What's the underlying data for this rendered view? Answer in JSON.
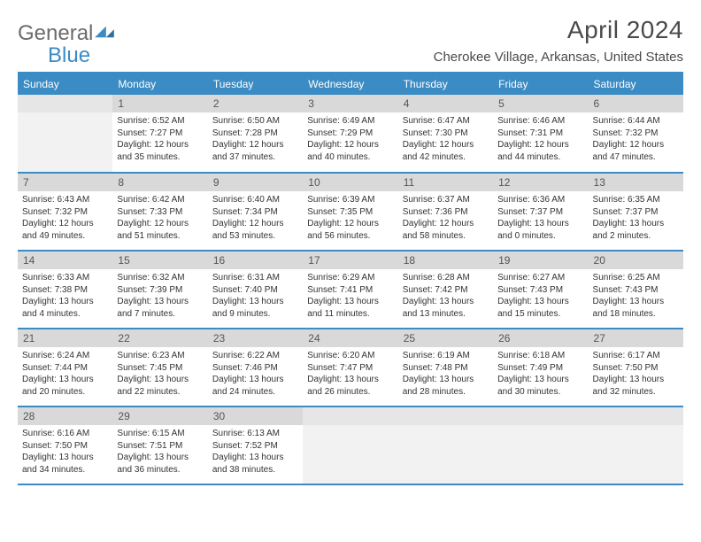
{
  "brand": {
    "part1": "General",
    "part2": "Blue"
  },
  "title": "April 2024",
  "location": "Cherokee Village, Arkansas, United States",
  "colors": {
    "accent": "#3b8bc4",
    "header_bg": "#3b8bc4",
    "header_text": "#ffffff",
    "daynum_bg": "#d9d9d9",
    "body_text": "#333333",
    "border": "#3b8bc4"
  },
  "weekdays": [
    "Sunday",
    "Monday",
    "Tuesday",
    "Wednesday",
    "Thursday",
    "Friday",
    "Saturday"
  ],
  "weeks": [
    [
      {
        "n": "",
        "sunrise": "",
        "sunset": "",
        "daylight": ""
      },
      {
        "n": "1",
        "sunrise": "6:52 AM",
        "sunset": "7:27 PM",
        "daylight": "12 hours and 35 minutes."
      },
      {
        "n": "2",
        "sunrise": "6:50 AM",
        "sunset": "7:28 PM",
        "daylight": "12 hours and 37 minutes."
      },
      {
        "n": "3",
        "sunrise": "6:49 AM",
        "sunset": "7:29 PM",
        "daylight": "12 hours and 40 minutes."
      },
      {
        "n": "4",
        "sunrise": "6:47 AM",
        "sunset": "7:30 PM",
        "daylight": "12 hours and 42 minutes."
      },
      {
        "n": "5",
        "sunrise": "6:46 AM",
        "sunset": "7:31 PM",
        "daylight": "12 hours and 44 minutes."
      },
      {
        "n": "6",
        "sunrise": "6:44 AM",
        "sunset": "7:32 PM",
        "daylight": "12 hours and 47 minutes."
      }
    ],
    [
      {
        "n": "7",
        "sunrise": "6:43 AM",
        "sunset": "7:32 PM",
        "daylight": "12 hours and 49 minutes."
      },
      {
        "n": "8",
        "sunrise": "6:42 AM",
        "sunset": "7:33 PM",
        "daylight": "12 hours and 51 minutes."
      },
      {
        "n": "9",
        "sunrise": "6:40 AM",
        "sunset": "7:34 PM",
        "daylight": "12 hours and 53 minutes."
      },
      {
        "n": "10",
        "sunrise": "6:39 AM",
        "sunset": "7:35 PM",
        "daylight": "12 hours and 56 minutes."
      },
      {
        "n": "11",
        "sunrise": "6:37 AM",
        "sunset": "7:36 PM",
        "daylight": "12 hours and 58 minutes."
      },
      {
        "n": "12",
        "sunrise": "6:36 AM",
        "sunset": "7:37 PM",
        "daylight": "13 hours and 0 minutes."
      },
      {
        "n": "13",
        "sunrise": "6:35 AM",
        "sunset": "7:37 PM",
        "daylight": "13 hours and 2 minutes."
      }
    ],
    [
      {
        "n": "14",
        "sunrise": "6:33 AM",
        "sunset": "7:38 PM",
        "daylight": "13 hours and 4 minutes."
      },
      {
        "n": "15",
        "sunrise": "6:32 AM",
        "sunset": "7:39 PM",
        "daylight": "13 hours and 7 minutes."
      },
      {
        "n": "16",
        "sunrise": "6:31 AM",
        "sunset": "7:40 PM",
        "daylight": "13 hours and 9 minutes."
      },
      {
        "n": "17",
        "sunrise": "6:29 AM",
        "sunset": "7:41 PM",
        "daylight": "13 hours and 11 minutes."
      },
      {
        "n": "18",
        "sunrise": "6:28 AM",
        "sunset": "7:42 PM",
        "daylight": "13 hours and 13 minutes."
      },
      {
        "n": "19",
        "sunrise": "6:27 AM",
        "sunset": "7:43 PM",
        "daylight": "13 hours and 15 minutes."
      },
      {
        "n": "20",
        "sunrise": "6:25 AM",
        "sunset": "7:43 PM",
        "daylight": "13 hours and 18 minutes."
      }
    ],
    [
      {
        "n": "21",
        "sunrise": "6:24 AM",
        "sunset": "7:44 PM",
        "daylight": "13 hours and 20 minutes."
      },
      {
        "n": "22",
        "sunrise": "6:23 AM",
        "sunset": "7:45 PM",
        "daylight": "13 hours and 22 minutes."
      },
      {
        "n": "23",
        "sunrise": "6:22 AM",
        "sunset": "7:46 PM",
        "daylight": "13 hours and 24 minutes."
      },
      {
        "n": "24",
        "sunrise": "6:20 AM",
        "sunset": "7:47 PM",
        "daylight": "13 hours and 26 minutes."
      },
      {
        "n": "25",
        "sunrise": "6:19 AM",
        "sunset": "7:48 PM",
        "daylight": "13 hours and 28 minutes."
      },
      {
        "n": "26",
        "sunrise": "6:18 AM",
        "sunset": "7:49 PM",
        "daylight": "13 hours and 30 minutes."
      },
      {
        "n": "27",
        "sunrise": "6:17 AM",
        "sunset": "7:50 PM",
        "daylight": "13 hours and 32 minutes."
      }
    ],
    [
      {
        "n": "28",
        "sunrise": "6:16 AM",
        "sunset": "7:50 PM",
        "daylight": "13 hours and 34 minutes."
      },
      {
        "n": "29",
        "sunrise": "6:15 AM",
        "sunset": "7:51 PM",
        "daylight": "13 hours and 36 minutes."
      },
      {
        "n": "30",
        "sunrise": "6:13 AM",
        "sunset": "7:52 PM",
        "daylight": "13 hours and 38 minutes."
      },
      {
        "n": "",
        "sunrise": "",
        "sunset": "",
        "daylight": ""
      },
      {
        "n": "",
        "sunrise": "",
        "sunset": "",
        "daylight": ""
      },
      {
        "n": "",
        "sunrise": "",
        "sunset": "",
        "daylight": ""
      },
      {
        "n": "",
        "sunrise": "",
        "sunset": "",
        "daylight": ""
      }
    ]
  ],
  "labels": {
    "sunrise": "Sunrise:",
    "sunset": "Sunset:",
    "daylight": "Daylight:"
  }
}
